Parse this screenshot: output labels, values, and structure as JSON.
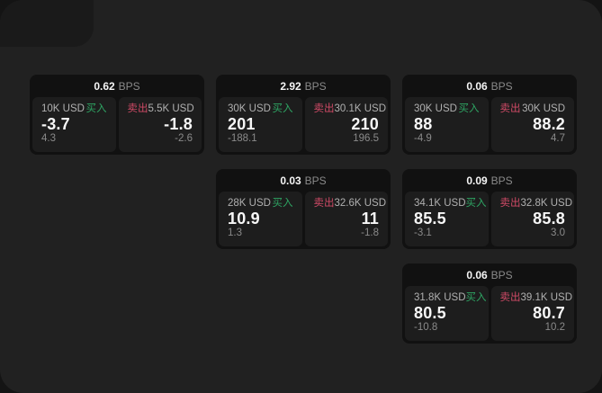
{
  "labels": {
    "bps_unit": "BPS",
    "buy": "买入",
    "sell": "卖出"
  },
  "colors": {
    "buy_green": "#2ea563",
    "sell_red": "#cf4a66",
    "background": "#212121",
    "card_background": "#111111",
    "panel_background": "#1d1d1d"
  },
  "cards": [
    {
      "row": 1,
      "col": 1,
      "bps": "0.62",
      "buy": {
        "amount": "10K USD",
        "value": "-3.7",
        "secondary": "4.3"
      },
      "sell": {
        "amount": "5.5K USD",
        "value": "-1.8",
        "secondary": "-2.6"
      }
    },
    {
      "row": 1,
      "col": 2,
      "bps": "2.92",
      "buy": {
        "amount": "30K USD",
        "value": "201",
        "secondary": "-188.1"
      },
      "sell": {
        "amount": "30.1K USD",
        "value": "210",
        "secondary": "196.5"
      }
    },
    {
      "row": 1,
      "col": 3,
      "bps": "0.06",
      "buy": {
        "amount": "30K USD",
        "value": "88",
        "secondary": "-4.9"
      },
      "sell": {
        "amount": "30K USD",
        "value": "88.2",
        "secondary": "4.7"
      }
    },
    {
      "row": 2,
      "col": 2,
      "bps": "0.03",
      "buy": {
        "amount": "28K USD",
        "value": "10.9",
        "secondary": "1.3"
      },
      "sell": {
        "amount": "32.6K USD",
        "value": "11",
        "secondary": "-1.8"
      }
    },
    {
      "row": 2,
      "col": 3,
      "bps": "0.09",
      "buy": {
        "amount": "34.1K USD",
        "value": "85.5",
        "secondary": "-3.1"
      },
      "sell": {
        "amount": "32.8K USD",
        "value": "85.8",
        "secondary": "3.0"
      }
    },
    {
      "row": 3,
      "col": 3,
      "bps": "0.06",
      "buy": {
        "amount": "31.8K USD",
        "value": "80.5",
        "secondary": "-10.8"
      },
      "sell": {
        "amount": "39.1K USD",
        "value": "80.7",
        "secondary": "10.2"
      }
    }
  ]
}
